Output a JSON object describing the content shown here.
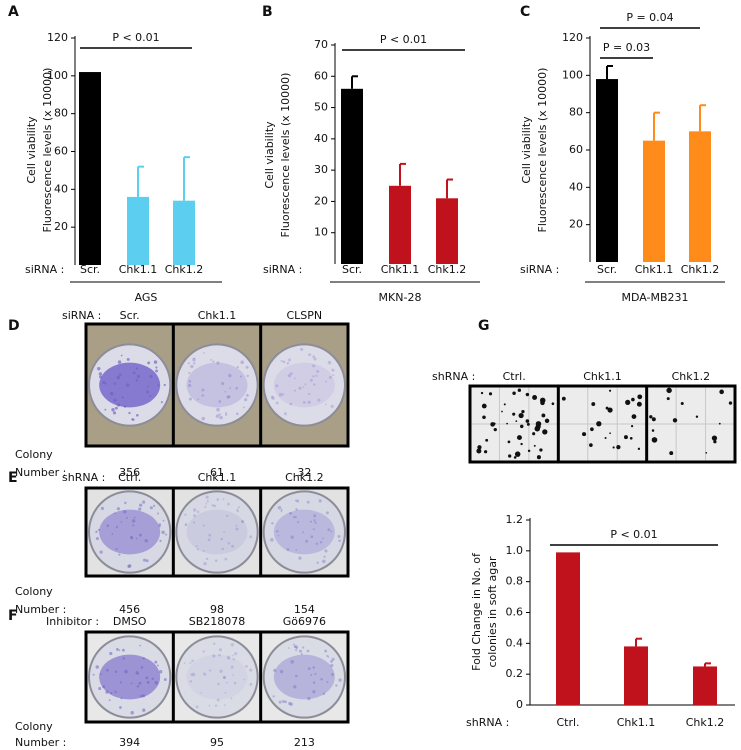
{
  "chart_data": [
    {
      "type": "bar",
      "panel": "A",
      "ylabel": [
        "Cell viability",
        "Fluorescence levels (x 10000)"
      ],
      "xlabel": "siRNA :",
      "group": "AGS",
      "categories": [
        "Scr.",
        "Chk1.1",
        "Chk1.2"
      ],
      "values": [
        102,
        36,
        34
      ],
      "errors": [
        null,
        16,
        23
      ],
      "colors": [
        "#000000",
        "#5ccff0",
        "#5ccff0"
      ],
      "ylim": [
        0,
        120
      ],
      "yticks": [
        20,
        40,
        60,
        80,
        100,
        120
      ],
      "annotations": [
        "P < 0.01"
      ]
    },
    {
      "type": "bar",
      "panel": "B",
      "ylabel": [
        "Cell viability",
        "Fluorescence levels (x 10000)"
      ],
      "xlabel": "siRNA :",
      "group": "MKN-28",
      "categories": [
        "Scr.",
        "Chk1.1",
        "Chk1.2"
      ],
      "values": [
        56,
        25,
        21
      ],
      "errors": [
        4,
        7,
        6
      ],
      "colors": [
        "#000000",
        "#c0121c",
        "#c0121c"
      ],
      "ylim": [
        0,
        70
      ],
      "yticks": [
        10,
        20,
        30,
        40,
        50,
        60,
        70
      ],
      "annotations": [
        "P < 0.01"
      ]
    },
    {
      "type": "bar",
      "panel": "C",
      "ylabel": [
        "Cell viability",
        "Fluorescence levels (x 10000)"
      ],
      "xlabel": "siRNA :",
      "group": "MDA-MB231",
      "categories": [
        "Scr.",
        "Chk1.1",
        "Chk1.2"
      ],
      "values": [
        98,
        65,
        70
      ],
      "errors": [
        7,
        15,
        14
      ],
      "colors": [
        "#000000",
        "#ff8c1a",
        "#ff8c1a"
      ],
      "ylim": [
        0,
        120
      ],
      "yticks": [
        20,
        40,
        60,
        80,
        100,
        120
      ],
      "annotations": [
        "P = 0.03",
        "P = 0.04"
      ]
    },
    {
      "type": "bar",
      "ylabel": [
        "Fold Change in No. of",
        "colonies in soft agar"
      ],
      "xlabel": "shRNA :",
      "categories": [
        "Ctrl.",
        "Chk1.1",
        "Chk1.2"
      ],
      "values": [
        0.99,
        0.38,
        0.25
      ],
      "errors": [
        null,
        0.05,
        0.02
      ],
      "colors": [
        "#c0121c",
        "#c0121c",
        "#c0121c"
      ],
      "ylim": [
        0,
        1.2
      ],
      "yticks": [
        0,
        0.2,
        0.4,
        0.6,
        0.8,
        {
          "value": 1,
          "label": "1.0"
        },
        1.2
      ],
      "annotations": [
        "P < 0.01"
      ]
    }
  ],
  "image_panels": [
    {
      "panel": "D",
      "row_label": "siRNA :",
      "labels": [
        "Scr.",
        "Chk1.1",
        "CLSPN"
      ],
      "count_label": [
        "Colony",
        "Number :"
      ],
      "counts": [
        356,
        61,
        32
      ]
    },
    {
      "panel": "E",
      "row_label": "shRNA :",
      "labels": [
        "Ctrl.",
        "Chk1.1",
        "Chk1.2"
      ],
      "count_label": [
        "Colony",
        "Number :"
      ],
      "counts": [
        456,
        98,
        154
      ]
    },
    {
      "panel": "F",
      "row_label": "Inhibitor :",
      "labels": [
        "DMSO",
        "SB218078",
        "Gö6976"
      ],
      "count_label": [
        "Colony",
        "Number :"
      ],
      "counts": [
        394,
        95,
        213
      ]
    },
    {
      "panel": "G",
      "row_label": "shRNA :",
      "labels": [
        "Ctrl.",
        "Chk1.1",
        "Chk1.2"
      ]
    }
  ]
}
